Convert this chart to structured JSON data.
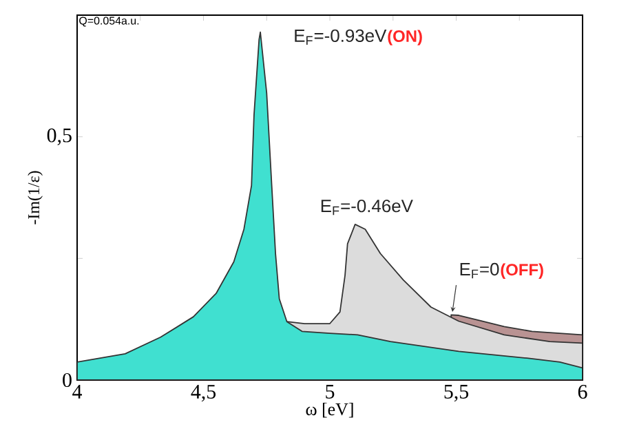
{
  "chart_data": {
    "type": "area",
    "xlabel": "ω [eV]",
    "ylabel": "-Im(1/ε)",
    "xlim": [
      4,
      6
    ],
    "ylim": [
      0,
      0.75
    ],
    "xticks": [
      4,
      {
        "value": 4.25,
        "label": null
      },
      {
        "value": 4.5,
        "label": "4,5"
      },
      {
        "value": 4.75,
        "label": null
      },
      5,
      {
        "value": 5.25,
        "label": null
      },
      {
        "value": 5.5,
        "label": "5,5"
      },
      {
        "value": 5.75,
        "label": null
      },
      6
    ],
    "yticks": [
      0,
      {
        "value": 0.25,
        "label": null
      },
      {
        "value": 0.5,
        "label": "0,5"
      }
    ],
    "annotations": [
      "Q=0.054a.u.",
      "(ON)",
      "(OFF)"
    ],
    "series": [
      {
        "name": "E$_{F}$=0",
        "color": "#b99393",
        "x": [
          5.48,
          5.51,
          5.58,
          5.69,
          5.8,
          6
        ],
        "values": [
          0.134,
          0.133,
          0.124,
          0.11,
          0.1,
          0.093
        ]
      },
      {
        "name": "E$_{F}$=-0.46eV",
        "color": "#dcdcdc",
        "x": [
          4.83,
          4.9,
          5.0,
          5.04,
          5.06,
          5.07,
          5.1,
          5.14,
          5.2,
          5.29,
          5.4,
          5.51,
          5.69,
          5.87,
          6
        ],
        "values": [
          0.12,
          0.116,
          0.116,
          0.14,
          0.215,
          0.28,
          0.32,
          0.31,
          0.26,
          0.206,
          0.15,
          0.121,
          0.093,
          0.079,
          0.076
        ]
      },
      {
        "name": "E$_{F}$=-0.93eV",
        "color": "#40e0d0",
        "x": [
          4,
          4.19,
          4.33,
          4.46,
          4.55,
          4.62,
          4.66,
          4.69,
          4.7,
          4.72,
          4.725,
          4.75,
          4.77,
          4.785,
          4.8,
          4.83,
          4.89,
          5.0,
          5.11,
          5.24,
          5.51,
          5.78,
          5.91,
          6
        ],
        "values": [
          0.037,
          0.054,
          0.088,
          0.13,
          0.178,
          0.243,
          0.31,
          0.4,
          0.545,
          0.7,
          0.715,
          0.59,
          0.4,
          0.26,
          0.167,
          0.12,
          0.1,
          0.096,
          0.093,
          0.079,
          0.059,
          0.045,
          0.037,
          0.025
        ]
      }
    ]
  }
}
